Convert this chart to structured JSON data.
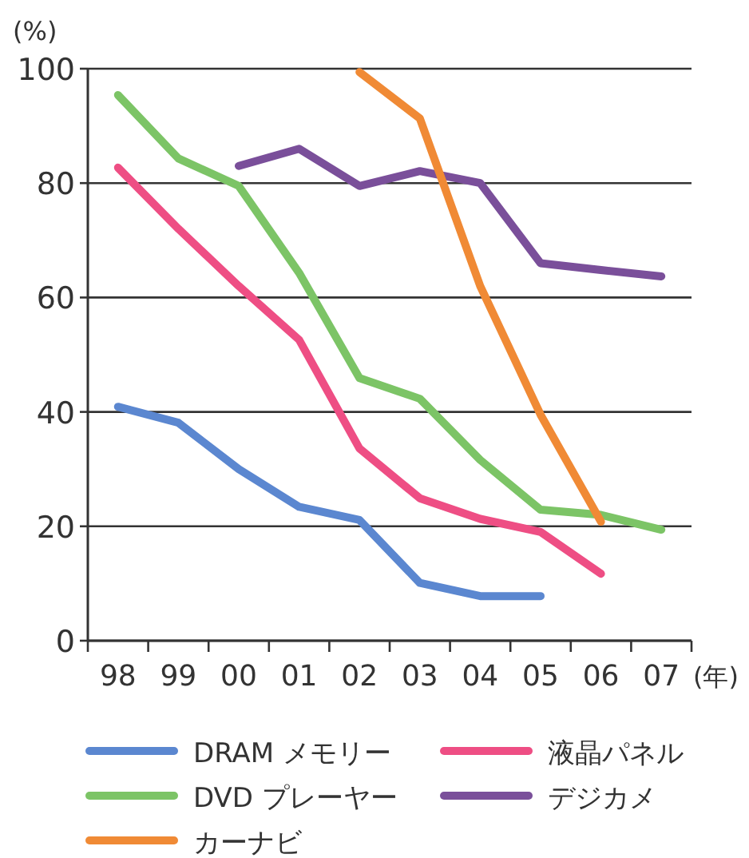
{
  "chart_data": {
    "type": "line",
    "ylabel": "(%)",
    "xlabel": "(年)",
    "categories": [
      "98",
      "99",
      "00",
      "01",
      "02",
      "03",
      "04",
      "05",
      "06",
      "07"
    ],
    "ylim": [
      0,
      100
    ],
    "yticks": [
      0,
      20,
      40,
      60,
      80,
      100
    ],
    "grid": "y",
    "legend": "bottom",
    "marker": "none",
    "line_style": "solid",
    "series": [
      {
        "name": "DRAM メモリー",
        "color": "#5b87d0",
        "values": [
          40.9,
          38.1,
          30,
          23.4,
          21.1,
          10.1,
          7.8,
          7.8,
          null,
          null
        ]
      },
      {
        "name": "液晶パネル",
        "color": "#ee4e84",
        "values": [
          82.7,
          72,
          62,
          52.6,
          33.6,
          24.9,
          21.3,
          19,
          11.7,
          null
        ]
      },
      {
        "name": "DVD プレーヤー",
        "color": "#7cc466",
        "values": [
          95.4,
          84.3,
          79.5,
          64.3,
          45.9,
          42.3,
          31.6,
          22.9,
          22,
          19.4
        ]
      },
      {
        "name": "デジカメ",
        "color": "#7a4f9a",
        "values": [
          null,
          null,
          83,
          86,
          79.5,
          82.1,
          80,
          66,
          64.8,
          63.7
        ]
      },
      {
        "name": "カーナビ",
        "color": "#f08a35",
        "values": [
          null,
          null,
          null,
          null,
          99.4,
          91.3,
          62,
          39.5,
          20.8,
          null
        ]
      }
    ]
  }
}
